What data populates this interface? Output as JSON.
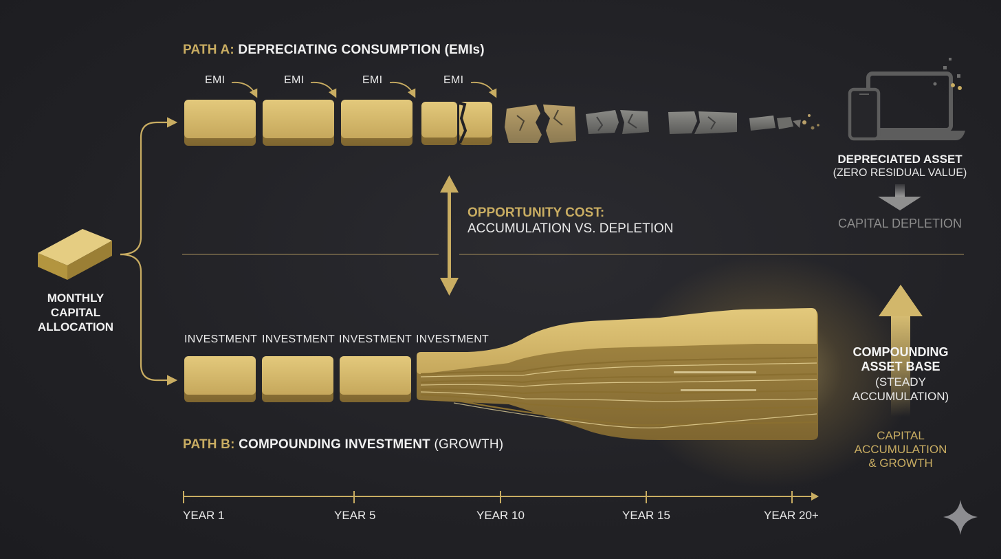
{
  "source": {
    "label_lines": [
      "MONTHLY",
      "CAPITAL",
      "ALLOCATION"
    ]
  },
  "path_a": {
    "prefix": "PATH A:",
    "title": "DEPRECIATING CONSUMPTION (EMIs)",
    "step_labels": [
      "EMI",
      "EMI",
      "EMI",
      "EMI"
    ],
    "outcome_title": "DEPRECIATED ASSET",
    "outcome_subtitle": "(ZERO RESIDUAL VALUE)",
    "result": "CAPITAL DEPLETION"
  },
  "opportunity": {
    "title": "OPPORTUNITY COST:",
    "subtitle": "ACCUMULATION VS. DEPLETION"
  },
  "path_b": {
    "prefix": "PATH B:",
    "title": "COMPOUNDING INVESTMENT",
    "suffix": "(GROWTH)",
    "step_labels": [
      "INVESTMENT",
      "INVESTMENT",
      "INVESTMENT",
      "INVESTMENT"
    ],
    "outcome_title_lines": [
      "COMPOUNDING",
      "ASSET BASE"
    ],
    "outcome_subtitle_lines": [
      "(STEADY",
      "ACCUMULATION)"
    ],
    "result_lines": [
      "CAPITAL",
      "ACCUMULATION",
      "& GROWTH"
    ]
  },
  "timeline": {
    "labels": [
      "YEAR 1",
      "YEAR 5",
      "YEAR 10",
      "YEAR 15",
      "YEAR 20+"
    ]
  },
  "colors": {
    "gold": "#c9ad62",
    "gold_light": "#e8d28c",
    "gray": "#8a8a8a",
    "background": "#222226"
  }
}
